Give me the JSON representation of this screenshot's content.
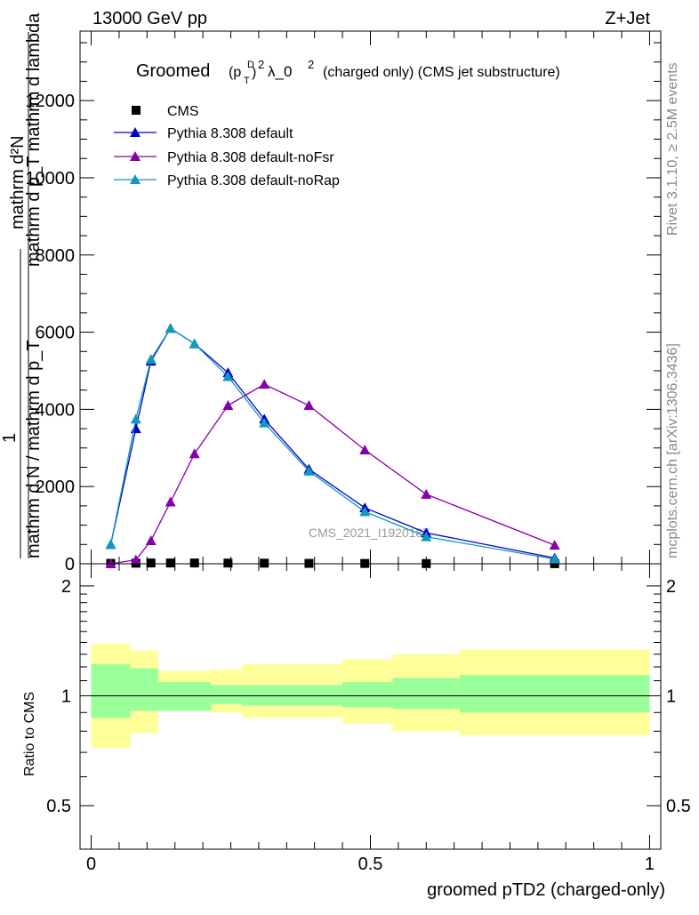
{
  "header": {
    "left": "13000 GeV pp",
    "right": "Z+Jet"
  },
  "side_text": {
    "rivet": "Rivet 3.1.10, ≥ 2.5M events",
    "mcplots": "mcplots.cern.ch [arXiv:1306.3436]"
  },
  "chart_data": [
    {
      "type": "line",
      "title_parts": {
        "groomed": "Groomed",
        "p": "(p",
        "sup_d": "D",
        "sub_t": "T",
        "close": ")",
        "sup_2": "2",
        "lambda": "λ_0",
        "sup_2b": "2",
        "rest": "(charged only) (CMS jet substructure)"
      },
      "ylabel_parts": {
        "numer_top": "mathrm d²N",
        "denom_top": "mathrm d p_T mathrm d lambda",
        "one": "1",
        "denom_bottom": "mathrm d N / mathrm d p_T"
      },
      "watermark": "CMS_2021_I1920187",
      "xlim": [
        -0.02,
        1.02
      ],
      "ylim": [
        0,
        13800
      ],
      "yticks": [
        0,
        2000,
        4000,
        6000,
        8000,
        10000,
        12000
      ],
      "ytick_labels": [
        "0",
        "2000",
        "4000",
        "6000",
        "8000",
        "10000",
        "12000"
      ],
      "grid": false,
      "legend_placement": "top-left",
      "series": [
        {
          "name": "CMS",
          "color": "#000000",
          "marker": "square",
          "x": [
            0.035,
            0.08,
            0.107,
            0.142,
            0.185,
            0.245,
            0.31,
            0.39,
            0.49,
            0.6,
            0.83
          ],
          "values": [
            10,
            15,
            20,
            20,
            20,
            18,
            15,
            10,
            8,
            5,
            2
          ]
        },
        {
          "name": "Pythia 8.308 default",
          "color": "#0000cc",
          "marker": "triangle",
          "x": [
            0.035,
            0.08,
            0.107,
            0.142,
            0.185,
            0.245,
            0.31,
            0.39,
            0.49,
            0.6,
            0.83
          ],
          "values": [
            500,
            3500,
            5250,
            6100,
            5700,
            4950,
            3750,
            2450,
            1450,
            800,
            150
          ]
        },
        {
          "name": "Pythia 8.308 default-noFsr",
          "color": "#8800aa",
          "marker": "triangle",
          "x": [
            0.035,
            0.08,
            0.107,
            0.142,
            0.185,
            0.245,
            0.31,
            0.39,
            0.49,
            0.6,
            0.83
          ],
          "values": [
            0,
            100,
            600,
            1600,
            2850,
            4100,
            4650,
            4100,
            2950,
            1800,
            480
          ]
        },
        {
          "name": "Pythia 8.308 default-noRap",
          "color": "#1199bb",
          "marker": "triangle",
          "x": [
            0.035,
            0.08,
            0.107,
            0.142,
            0.185,
            0.245,
            0.31,
            0.39,
            0.49,
            0.6,
            0.83
          ],
          "values": [
            500,
            3750,
            5300,
            6100,
            5700,
            4850,
            3650,
            2400,
            1350,
            700,
            120
          ]
        }
      ]
    },
    {
      "type": "area",
      "ylabel": "Ratio to CMS",
      "xlabel": "groomed pTD2 (charged-only)",
      "xlim": [
        -0.02,
        1.02
      ],
      "ylim": [
        0.38,
        2.3
      ],
      "xticks": [
        0,
        0.5,
        1
      ],
      "xtick_labels": [
        "0",
        "0.5",
        "1"
      ],
      "yticks": [
        0.5,
        1,
        2
      ],
      "ytick_labels": [
        "0.5",
        "1",
        "2"
      ],
      "reference_line": 1,
      "bins": [
        0.0,
        0.07,
        0.12,
        0.215,
        0.27,
        0.54,
        0.715,
        1.0
      ],
      "note_bins": "bin edges at 0,0.07,0.12,0.215,0.27,0.54,0.715,1.0 shown as steps",
      "stat_band": {
        "color": "#99ff99",
        "edges": [
          0.0,
          0.07,
          0.12,
          0.215,
          0.27,
          0.45,
          0.54,
          0.66,
          1.0
        ],
        "lower": [
          0.87,
          0.91,
          0.91,
          0.95,
          0.94,
          0.93,
          0.92,
          0.9,
          0.9
        ],
        "upper": [
          1.22,
          1.19,
          1.09,
          1.07,
          1.07,
          1.09,
          1.12,
          1.14,
          1.14
        ]
      },
      "syst_band": {
        "color": "#ffff99",
        "edges": [
          0.0,
          0.07,
          0.12,
          0.215,
          0.27,
          0.45,
          0.54,
          0.66,
          1.0
        ],
        "lower": [
          0.72,
          0.79,
          0.91,
          0.9,
          0.87,
          0.84,
          0.8,
          0.78,
          0.78
        ],
        "upper": [
          1.39,
          1.33,
          1.17,
          1.18,
          1.22,
          1.26,
          1.3,
          1.34,
          1.34
        ]
      }
    }
  ]
}
